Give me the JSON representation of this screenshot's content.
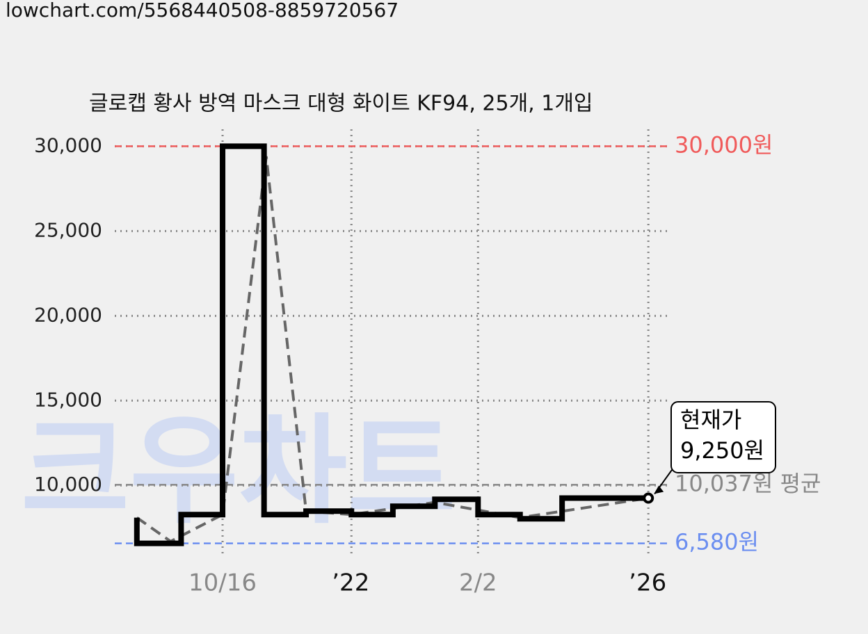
{
  "url": "lowchart.com/5568440508-8859720567",
  "chart_data": {
    "type": "step",
    "title": "글로캡 황사 방역 마스크 대형 화이트 KF94, 25개, 1개입",
    "watermark": "크우차트",
    "x": [
      4.0,
      4.0,
      12.0,
      19.5,
      27.0,
      34.6,
      42.8,
      50.3,
      57.9,
      65.7,
      73.3,
      80.9,
      96.5
    ],
    "values": [
      8100,
      6580,
      8280,
      30000,
      8280,
      8480,
      8280,
      8770,
      9180,
      8280,
      8030,
      9250,
      9250
    ],
    "color": "#000000",
    "trend": {
      "x": [
        4.0,
        10.1,
        19.5,
        27.4,
        34.6,
        42.8,
        57.9,
        73.3,
        96.5
      ],
      "values": [
        8100,
        6700,
        8280,
        29400,
        8480,
        8280,
        9000,
        8100,
        9250
      ],
      "color": "#666666"
    },
    "xlim": [
      0,
      100
    ],
    "xticks": [
      {
        "value": 19.5,
        "label": "10/16"
      },
      {
        "value": 42.8,
        "label": "’22"
      },
      {
        "value": 65.7,
        "label": "2/2"
      },
      {
        "value": 96.5,
        "label": "’26"
      }
    ],
    "ylim": [
      5500,
      31000
    ],
    "yticks": [
      {
        "value": 10000,
        "label": "10,000"
      },
      {
        "value": 15000,
        "label": "15,000"
      },
      {
        "value": 20000,
        "label": "20,000"
      },
      {
        "value": 25000,
        "label": "25,000"
      },
      {
        "value": 30000,
        "label": "30,000"
      }
    ],
    "grid": true,
    "reference_lines": [
      {
        "value": 30000,
        "label": "30,000원",
        "color": "#f05a5a"
      },
      {
        "value": 10037,
        "label": "10,037원 평균",
        "color": "#888888"
      },
      {
        "value": 6580,
        "label": "6,580원",
        "color": "#6b8ef0"
      }
    ],
    "current": {
      "x": 96.5,
      "value": 9250,
      "label": "현재가",
      "value_label": "9,250원"
    }
  }
}
